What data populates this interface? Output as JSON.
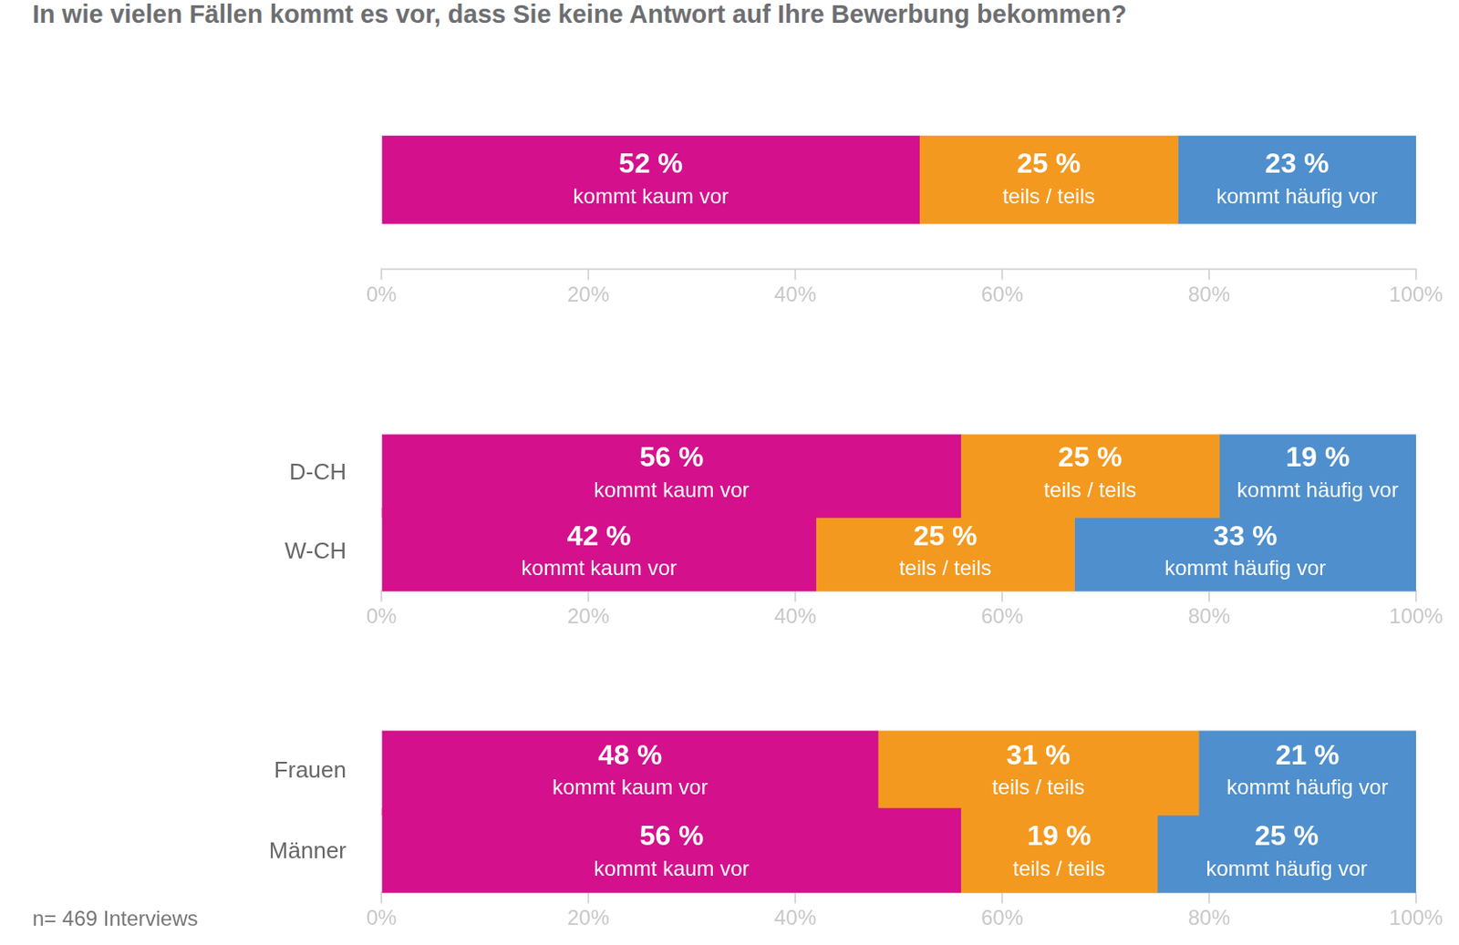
{
  "chart_data": [
    {
      "type": "bar",
      "title": "In wie vielen Fällen kommt es vor, dass Sie keine Antwort auf Ihre Bewerbung bekommen?",
      "orientation": "horizontal",
      "stacked": true,
      "data_labels": true,
      "grid": false,
      "legend": false,
      "categories": [
        null
      ],
      "series": [
        {
          "name": "kommt kaum vor",
          "color": "#d4108c",
          "values": [
            52
          ],
          "value_labels": [
            "52 %"
          ]
        },
        {
          "name": "teils / teils",
          "color": "#f4991f",
          "values": [
            25
          ],
          "value_labels": [
            "25 %"
          ]
        },
        {
          "name": "kommt häufig vor",
          "color": "#4f8fcd",
          "values": [
            23
          ],
          "value_labels": [
            "23 %"
          ]
        }
      ],
      "xlim": [
        0,
        100
      ],
      "xticks": [
        {
          "value": 0,
          "label": "0%"
        },
        {
          "value": 20,
          "label": "20%"
        },
        {
          "value": 40,
          "label": "40%"
        },
        {
          "value": 60,
          "label": "60%"
        },
        {
          "value": 80,
          "label": "80%"
        },
        {
          "value": 100,
          "label": "100%"
        }
      ]
    },
    {
      "type": "bar",
      "orientation": "horizontal",
      "stacked": true,
      "data_labels": true,
      "grid": false,
      "legend": false,
      "categories": [
        "D-CH",
        "W-CH"
      ],
      "series": [
        {
          "name": "kommt kaum vor",
          "color": "#d4108c",
          "values": [
            56,
            42
          ],
          "value_labels": [
            "56 %",
            "42 %"
          ]
        },
        {
          "name": "teils / teils",
          "color": "#f4991f",
          "values": [
            25,
            25
          ],
          "value_labels": [
            "25 %",
            "25 %"
          ]
        },
        {
          "name": "kommt häufig vor",
          "color": "#4f8fcd",
          "values": [
            19,
            33
          ],
          "value_labels": [
            "19 %",
            "33 %"
          ]
        }
      ],
      "xlim": [
        0,
        100
      ],
      "xticks": [
        {
          "value": 0,
          "label": "0%"
        },
        {
          "value": 20,
          "label": "20%"
        },
        {
          "value": 40,
          "label": "40%"
        },
        {
          "value": 60,
          "label": "60%"
        },
        {
          "value": 80,
          "label": "80%"
        },
        {
          "value": 100,
          "label": "100%"
        }
      ]
    },
    {
      "type": "bar",
      "orientation": "horizontal",
      "stacked": true,
      "data_labels": true,
      "grid": false,
      "legend": false,
      "categories": [
        "Frauen",
        "Männer"
      ],
      "series": [
        {
          "name": "kommt kaum vor",
          "color": "#d4108c",
          "values": [
            48,
            56
          ],
          "value_labels": [
            "48 %",
            "56 %"
          ]
        },
        {
          "name": "teils / teils",
          "color": "#f4991f",
          "values": [
            31,
            19
          ],
          "value_labels": [
            "31 %",
            "19 %"
          ]
        },
        {
          "name": "kommt häufig vor",
          "color": "#4f8fcd",
          "values": [
            21,
            25
          ],
          "value_labels": [
            "21 %",
            "25 %"
          ]
        }
      ],
      "xlim": [
        0,
        100
      ],
      "xticks": [
        {
          "value": 0,
          "label": "0%"
        },
        {
          "value": 20,
          "label": "20%"
        },
        {
          "value": 40,
          "label": "40%"
        },
        {
          "value": 60,
          "label": "60%"
        },
        {
          "value": 80,
          "label": "80%"
        },
        {
          "value": 100,
          "label": "100%"
        }
      ],
      "annotations": [
        "n= 469 Interviews"
      ]
    }
  ]
}
